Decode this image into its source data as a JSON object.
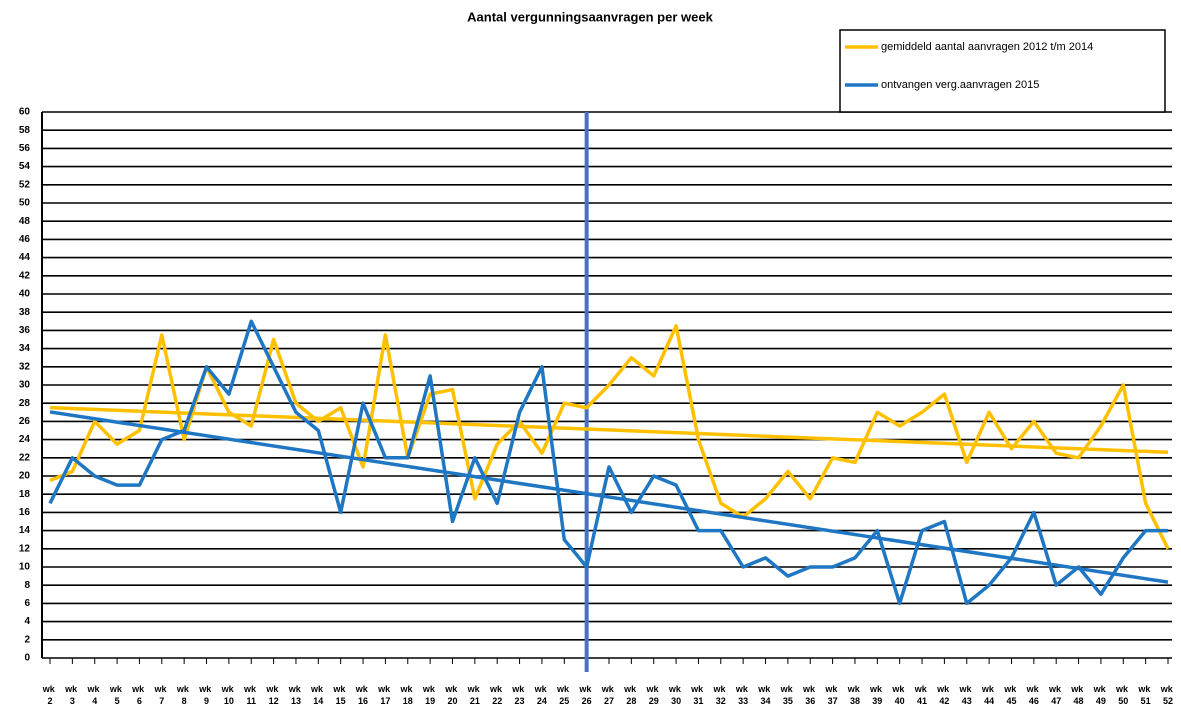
{
  "chart_data": {
    "type": "line",
    "title": "Aantal vergunningsaanvragen per week",
    "categories": [
      "wk 2",
      "wk 3",
      "wk 4",
      "wk 5",
      "wk 6",
      "wk 7",
      "wk 8",
      "wk 9",
      "wk 10",
      "wk 11",
      "wk 12",
      "wk 13",
      "wk 14",
      "wk 15",
      "wk 16",
      "wk 17",
      "wk 18",
      "wk 19",
      "wk 20",
      "wk 21",
      "wk 22",
      "wk 23",
      "wk 24",
      "wk 25",
      "wk 26",
      "wk 27",
      "wk 28",
      "wk 29",
      "wk 30",
      "wk 31",
      "wk 32",
      "wk 33",
      "wk 34",
      "wk 35",
      "wk 36",
      "wk 37",
      "wk 38",
      "wk 39",
      "wk 40",
      "wk 41",
      "wk 42",
      "wk 43",
      "wk 44",
      "wk 45",
      "wk 46",
      "wk 47",
      "wk 48",
      "wk 49",
      "wk 50",
      "wk 51",
      "wk 52"
    ],
    "series": [
      {
        "name": "gemiddeld aantal aanvragen 2012 t/m 2014",
        "color": "#ffc000",
        "values": [
          19.5,
          20.5,
          26,
          23.5,
          25,
          35.5,
          24,
          32,
          27,
          25.5,
          35,
          28,
          26,
          27.5,
          21,
          35.5,
          22,
          29,
          29.5,
          17.5,
          23.5,
          26,
          22.5,
          28,
          27.5,
          30,
          33,
          31,
          36.5,
          24,
          17,
          15.5,
          17.5,
          20.5,
          17.5,
          22,
          21.5,
          27,
          25.5,
          27,
          29,
          21.5,
          27,
          23,
          26,
          22.5,
          22,
          25.5,
          30,
          17,
          12
        ]
      },
      {
        "name": "ontvangen verg.aanvragen 2015",
        "color": "#1f77c4",
        "values": [
          17,
          22,
          20,
          19,
          19,
          24,
          25,
          32,
          29,
          37,
          32,
          27,
          25,
          16,
          28,
          22,
          22,
          31,
          15,
          22,
          17,
          27,
          32,
          13,
          10,
          21,
          16,
          20,
          19,
          14,
          14,
          10,
          11,
          9,
          10,
          10,
          11,
          14,
          6,
          14,
          15,
          6,
          8,
          11,
          16,
          8,
          10,
          7,
          11,
          14,
          14
        ]
      }
    ],
    "trendline": true,
    "vertical_line": {
      "category": "wk 26",
      "color": "#4472c4"
    },
    "ylim": [
      0,
      60
    ],
    "yticks": [
      0,
      2,
      4,
      6,
      8,
      10,
      12,
      14,
      16,
      18,
      20,
      22,
      24,
      26,
      28,
      30,
      32,
      34,
      36,
      38,
      40,
      42,
      44,
      46,
      48,
      50,
      52,
      54,
      56,
      58,
      60
    ],
    "grid": true,
    "legend": "top-right"
  }
}
